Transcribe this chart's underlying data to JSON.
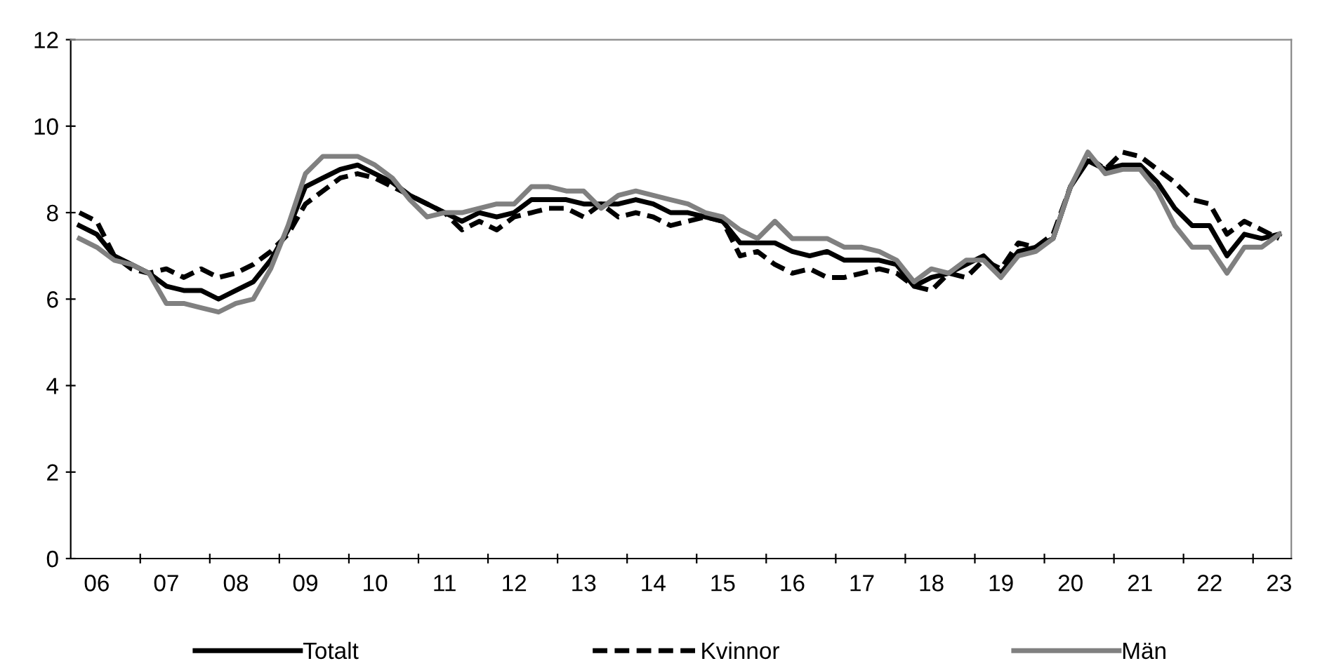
{
  "chart_data": {
    "type": "line",
    "categories": [
      null,
      "06",
      null,
      null,
      null,
      "07",
      null,
      null,
      null,
      "08",
      null,
      null,
      null,
      "09",
      null,
      null,
      null,
      "10",
      null,
      null,
      null,
      "11",
      null,
      null,
      null,
      "12",
      null,
      null,
      null,
      "13",
      null,
      null,
      null,
      "14",
      null,
      null,
      null,
      "15",
      null,
      null,
      null,
      "16",
      null,
      null,
      null,
      "17",
      null,
      null,
      null,
      "18",
      null,
      null,
      null,
      "19",
      null,
      null,
      null,
      "20",
      null,
      null,
      null,
      "21",
      null,
      null,
      null,
      "22",
      null,
      null,
      null,
      "23"
    ],
    "series": [
      {
        "name": "Totalt",
        "color": "#000000",
        "line_style": "solid",
        "values": [
          7.7,
          7.5,
          7.0,
          6.8,
          6.6,
          6.3,
          6.2,
          6.2,
          6.0,
          6.2,
          6.4,
          6.9,
          7.6,
          8.6,
          8.8,
          9.0,
          9.1,
          8.9,
          8.7,
          8.4,
          8.2,
          8.0,
          7.8,
          8.0,
          7.9,
          8.0,
          8.3,
          8.3,
          8.3,
          8.2,
          8.2,
          8.2,
          8.3,
          8.2,
          8.0,
          8.0,
          7.9,
          7.8,
          7.3,
          7.3,
          7.3,
          7.1,
          7.0,
          7.1,
          6.9,
          6.9,
          6.9,
          6.8,
          6.3,
          6.5,
          6.6,
          6.8,
          7.0,
          6.6,
          7.1,
          7.2,
          7.4,
          8.6,
          9.2,
          9.0,
          9.1,
          9.1,
          8.7,
          8.1,
          7.7,
          7.7,
          7.0,
          7.5,
          7.4,
          7.5
        ]
      },
      {
        "name": "Kvinnor",
        "color": "#000000",
        "line_style": "dashed",
        "values": [
          8.0,
          7.8,
          7.0,
          6.7,
          6.6,
          6.7,
          6.5,
          6.7,
          6.5,
          6.6,
          6.8,
          7.1,
          7.5,
          8.2,
          8.5,
          8.8,
          8.9,
          8.8,
          8.6,
          8.4,
          8.2,
          8.0,
          7.6,
          7.8,
          7.6,
          7.9,
          8.0,
          8.1,
          8.1,
          7.9,
          8.2,
          7.9,
          8.0,
          7.9,
          7.7,
          7.8,
          7.9,
          7.8,
          7.0,
          7.1,
          6.8,
          6.6,
          6.7,
          6.5,
          6.5,
          6.6,
          6.7,
          6.6,
          6.3,
          6.2,
          6.6,
          6.5,
          6.9,
          6.7,
          7.3,
          7.2,
          7.5,
          8.6,
          9.3,
          9.0,
          9.4,
          9.3,
          9.0,
          8.7,
          8.3,
          8.2,
          7.5,
          7.8,
          7.6,
          7.4
        ]
      },
      {
        "name": "Män",
        "color": "#808080",
        "line_style": "solid",
        "values": [
          7.4,
          7.2,
          6.9,
          6.8,
          6.6,
          5.9,
          5.9,
          5.8,
          5.7,
          5.9,
          6.0,
          6.7,
          7.7,
          8.9,
          9.3,
          9.3,
          9.3,
          9.1,
          8.8,
          8.3,
          7.9,
          8.0,
          8.0,
          8.1,
          8.2,
          8.2,
          8.6,
          8.6,
          8.5,
          8.5,
          8.1,
          8.4,
          8.5,
          8.4,
          8.3,
          8.2,
          8.0,
          7.9,
          7.6,
          7.4,
          7.8,
          7.4,
          7.4,
          7.4,
          7.2,
          7.2,
          7.1,
          6.9,
          6.4,
          6.7,
          6.6,
          6.9,
          6.9,
          6.5,
          7.0,
          7.1,
          7.4,
          8.6,
          9.4,
          8.9,
          9.0,
          9.0,
          8.5,
          7.7,
          7.2,
          7.2,
          6.6,
          7.2,
          7.2,
          7.5
        ]
      }
    ],
    "ylim": [
      0,
      12
    ],
    "yticks": [
      0,
      2,
      4,
      6,
      8,
      10,
      12
    ],
    "legend": "bottom",
    "marker": "none"
  }
}
